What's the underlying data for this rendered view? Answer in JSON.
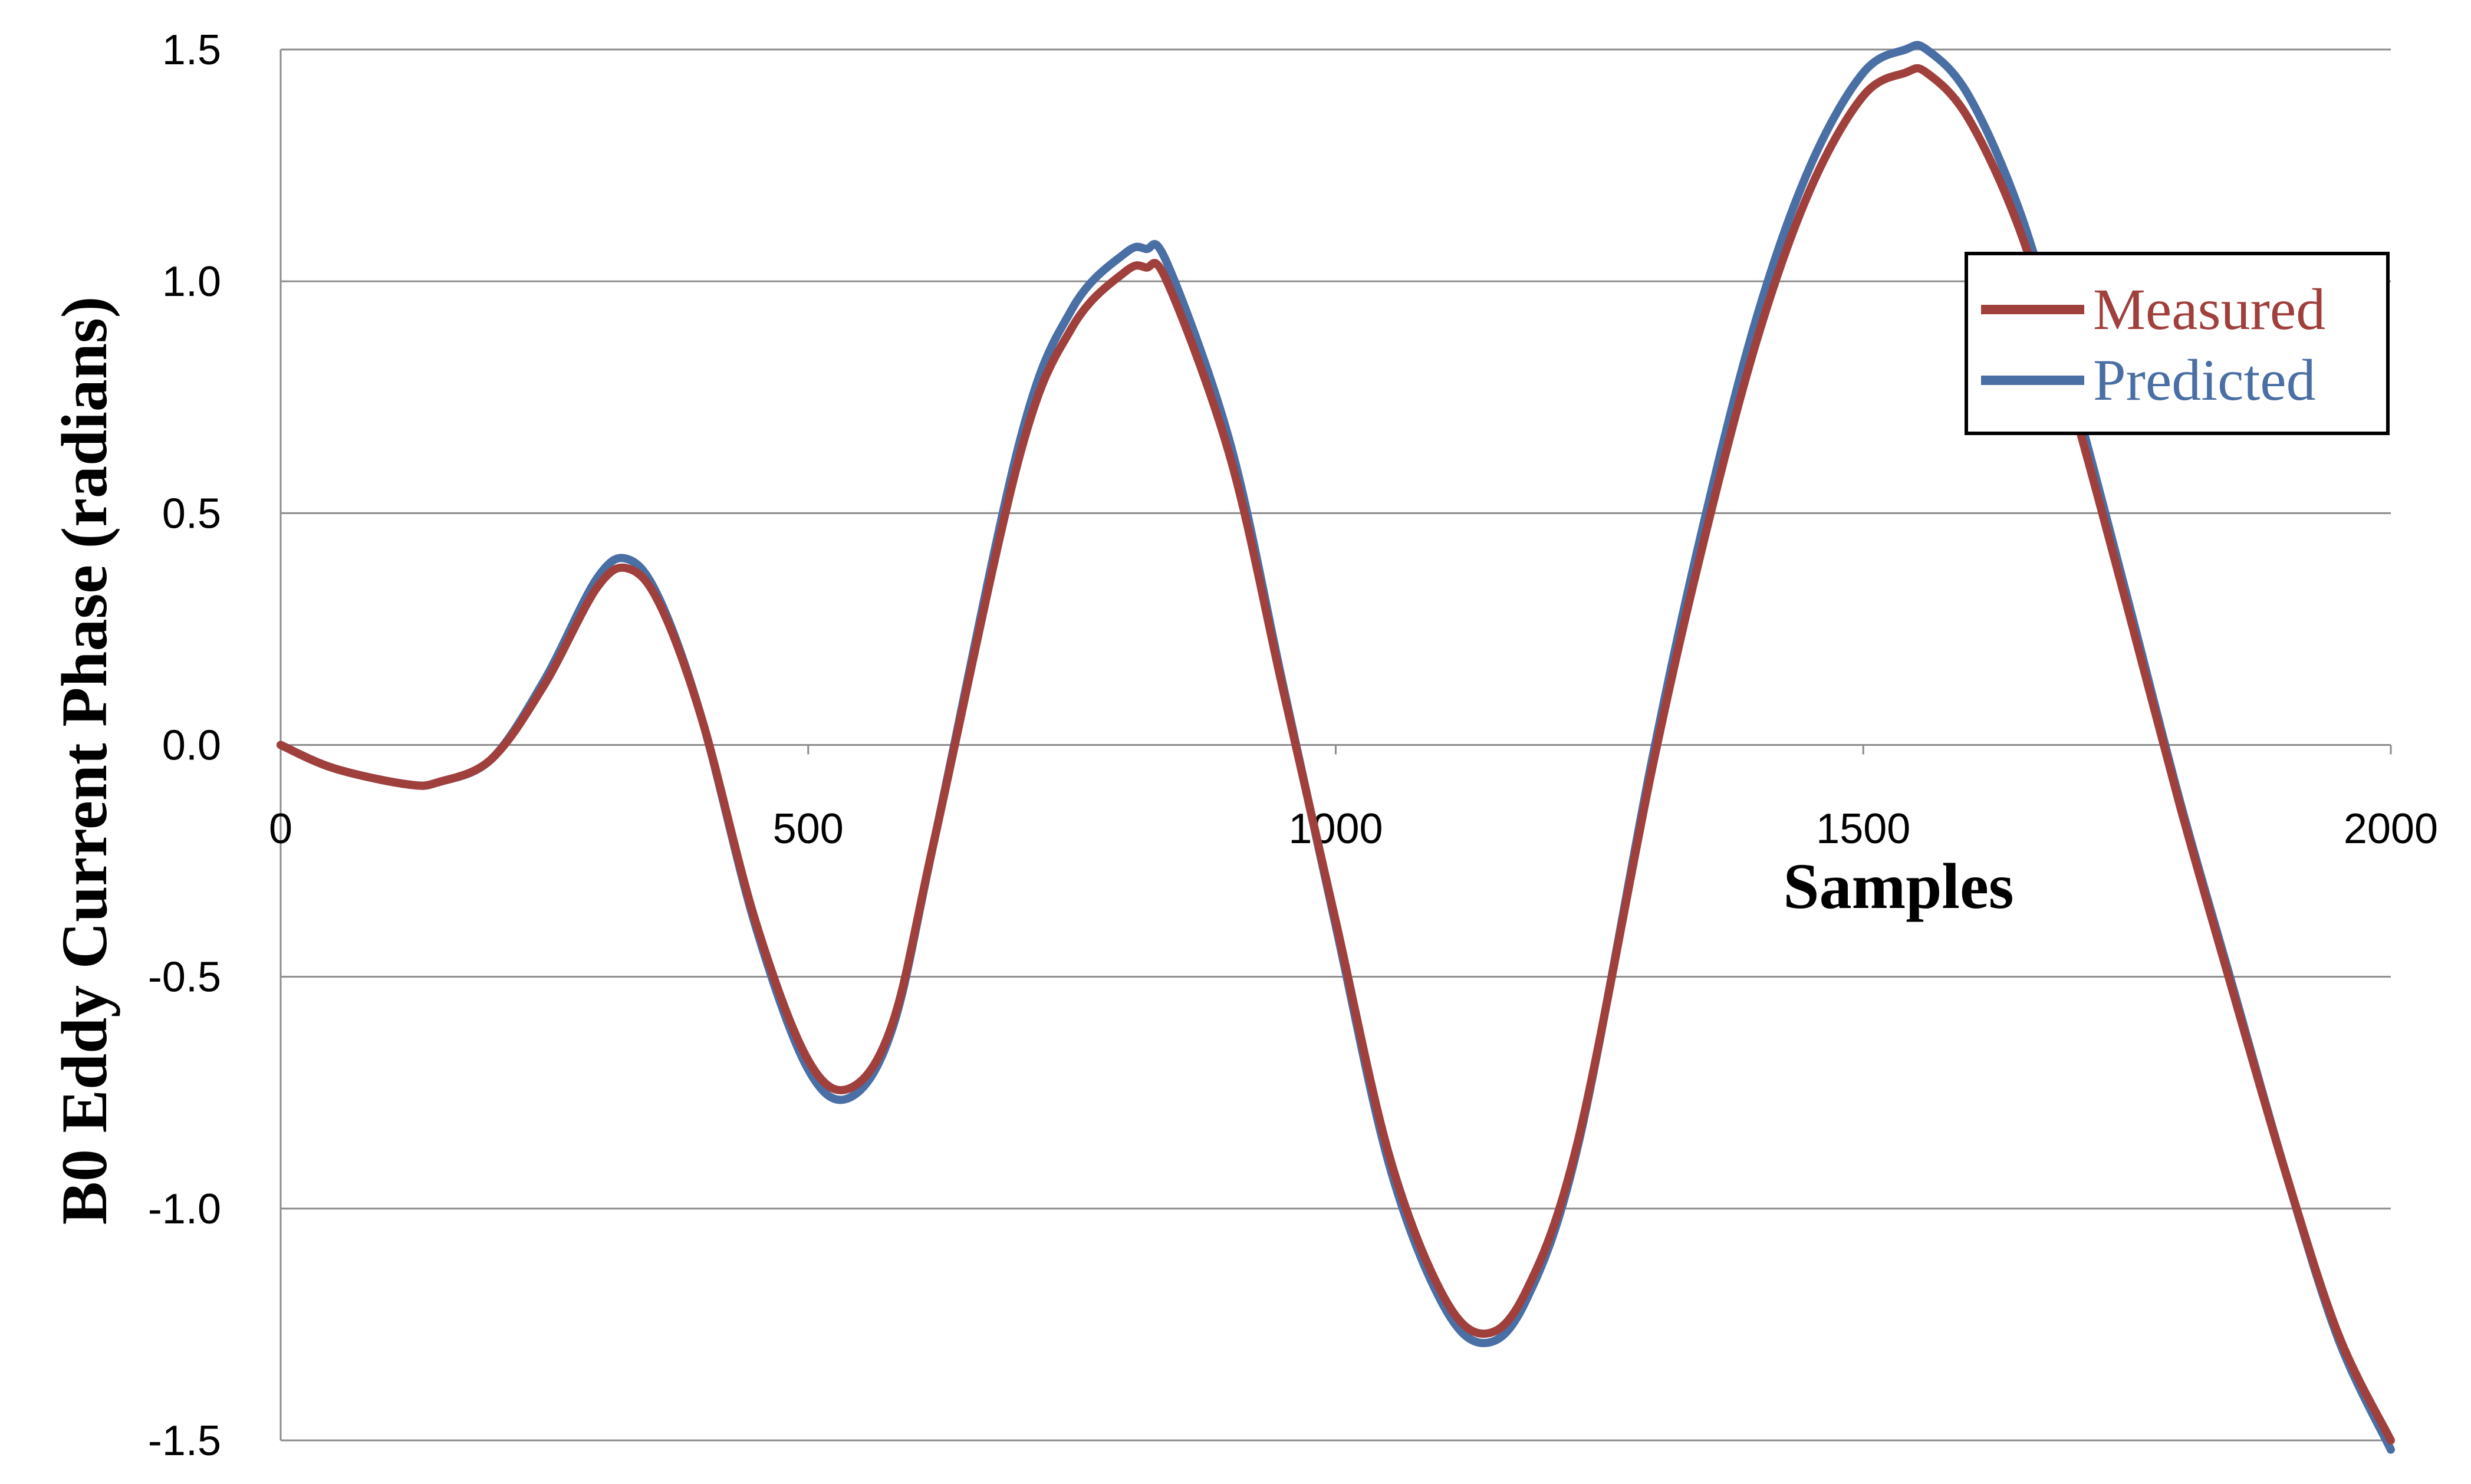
{
  "chart_data": {
    "type": "line",
    "title": "",
    "xlabel": "Samples",
    "ylabel": "B0 Eddy Current Phase (radians)",
    "xlim": [
      0,
      2000
    ],
    "ylim": [
      -1.5,
      1.5
    ],
    "x_ticks": [
      "0",
      "500",
      "1000",
      "1500",
      "2000"
    ],
    "y_ticks": [
      "1.5",
      "1.0",
      "0.5",
      "0.0",
      "-0.5",
      "-1.0",
      "-1.5"
    ],
    "grid": "horizontal",
    "legend": "right",
    "x": [
      0,
      50,
      120,
      150,
      200,
      250,
      300,
      330,
      360,
      400,
      450,
      500,
      540,
      580,
      620,
      700,
      750,
      800,
      820,
      840,
      900,
      950,
      1000,
      1050,
      1100,
      1140,
      1180,
      1230,
      1300,
      1350,
      1400,
      1450,
      1500,
      1540,
      1560,
      1600,
      1650,
      1700,
      1750,
      1800,
      1850,
      1900,
      1950,
      2000
    ],
    "series": [
      {
        "name": "Measured",
        "color": "#A0403C",
        "values": [
          0.0,
          -0.05,
          -0.085,
          -0.08,
          -0.03,
          0.13,
          0.34,
          0.38,
          0.3,
          0.05,
          -0.38,
          -0.68,
          -0.74,
          -0.6,
          -0.2,
          0.62,
          0.9,
          1.02,
          1.03,
          1.0,
          0.62,
          0.12,
          -0.38,
          -0.88,
          -1.18,
          -1.27,
          -1.18,
          -0.85,
          -0.05,
          0.45,
          0.88,
          1.2,
          1.4,
          1.45,
          1.45,
          1.35,
          1.1,
          0.72,
          0.3,
          -0.13,
          -0.53,
          -0.92,
          -1.27,
          -1.5
        ]
      },
      {
        "name": "Predicted",
        "color": "#4A6FA5",
        "values": [
          0.0,
          -0.05,
          -0.085,
          -0.08,
          -0.03,
          0.14,
          0.36,
          0.4,
          0.31,
          0.05,
          -0.39,
          -0.7,
          -0.76,
          -0.61,
          -0.2,
          0.65,
          0.94,
          1.06,
          1.07,
          1.04,
          0.65,
          0.13,
          -0.39,
          -0.9,
          -1.2,
          -1.29,
          -1.2,
          -0.86,
          -0.03,
          0.49,
          0.93,
          1.25,
          1.45,
          1.5,
          1.5,
          1.4,
          1.14,
          0.75,
          0.32,
          -0.12,
          -0.52,
          -0.92,
          -1.28,
          -1.52
        ]
      }
    ]
  }
}
